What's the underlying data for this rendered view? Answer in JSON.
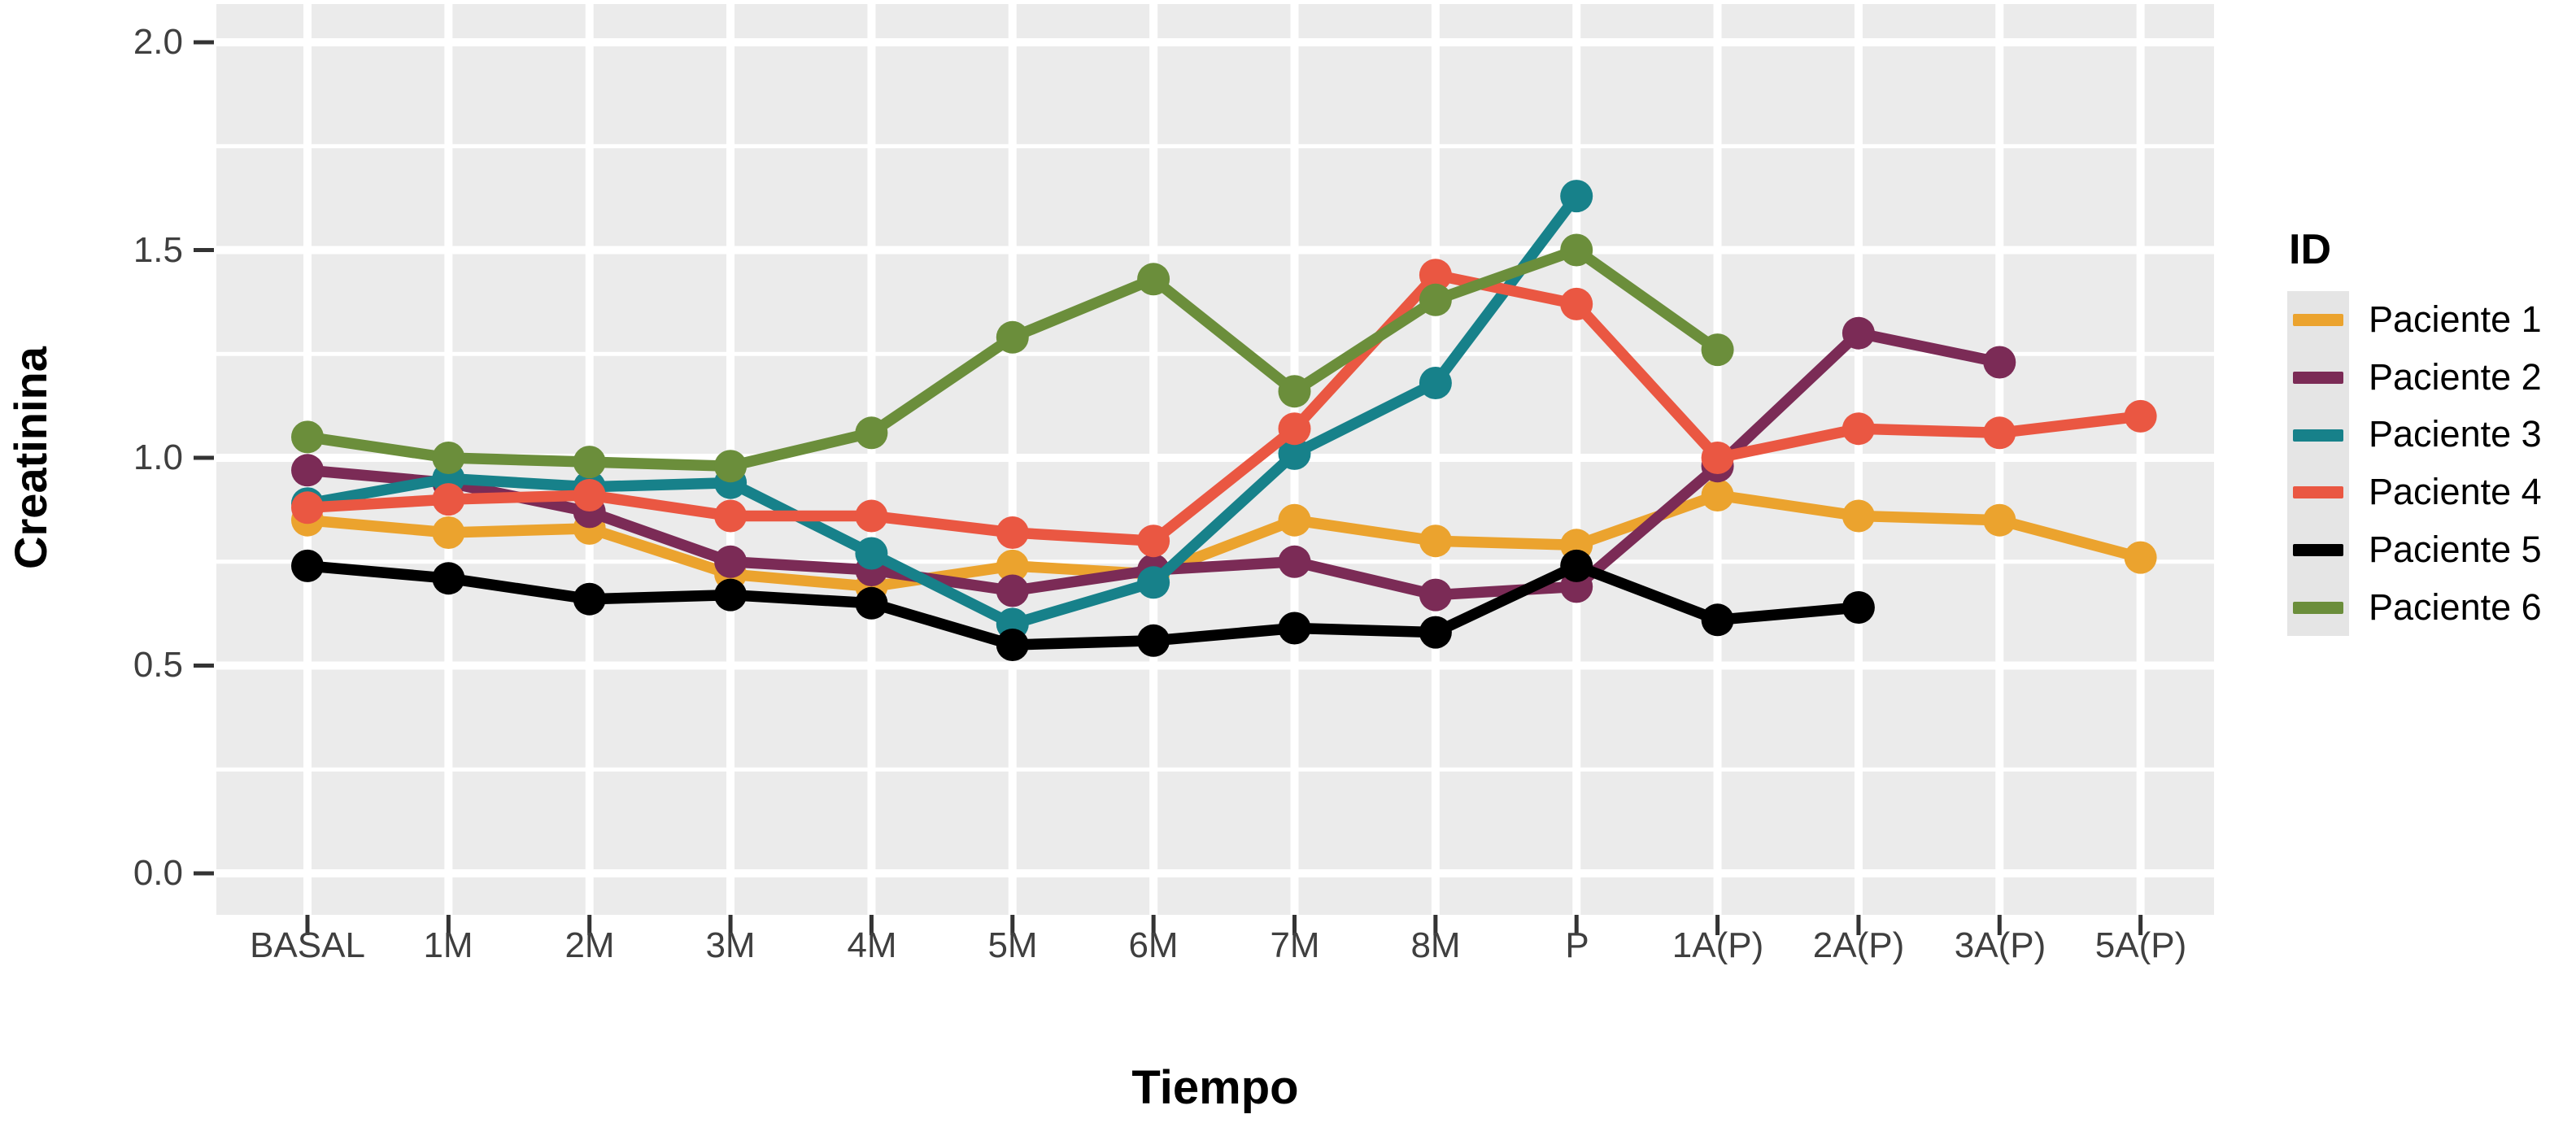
{
  "figure": {
    "panel_bg": "#ebebeb",
    "grid_color": "#ffffff",
    "axis_tick_color": "#333333",
    "tick_label_color": "#3f3f3f",
    "legend_key_bg": "#e5e5e5"
  },
  "chart_data": {
    "type": "line",
    "title": "",
    "xlabel": "Tiempo",
    "ylabel": "Creatinina",
    "legend_title": "ID",
    "legend_position": "right",
    "grid": true,
    "ylim": [
      -0.1,
      2.1
    ],
    "y_ticks": [
      0.0,
      0.5,
      1.0,
      1.5,
      2.0
    ],
    "y_tick_labels_top_down": [
      "2.0",
      "1.5",
      "1.0",
      "0.5",
      "0.0"
    ],
    "y_minor_ticks": [
      0.25,
      0.75,
      1.25,
      1.75
    ],
    "x_categories": [
      "BASAL",
      "1M",
      "2M",
      "3M",
      "4M",
      "5M",
      "6M",
      "7M",
      "8M",
      "P",
      "1A(P)",
      "2A(P)",
      "3A(P)",
      "5A(P)"
    ],
    "series": [
      {
        "name": "Paciente 1",
        "color": "#ebа32e",
        "values": [
          0.85,
          0.82,
          0.83,
          0.72,
          0.69,
          0.74,
          0.72,
          0.85,
          0.8,
          0.79,
          0.91,
          0.86,
          0.85,
          0.76
        ]
      },
      {
        "name": "Paciente 2",
        "color": "#7b2b56",
        "values": [
          0.97,
          0.94,
          0.87,
          0.75,
          0.73,
          0.68,
          0.73,
          0.75,
          0.67,
          0.69,
          0.98,
          1.3,
          1.23,
          null
        ]
      },
      {
        "name": "Paciente 3",
        "color": "#17818a",
        "values": [
          0.89,
          0.95,
          0.93,
          0.94,
          0.77,
          0.6,
          0.7,
          1.01,
          1.18,
          1.63,
          null,
          null,
          null,
          null
        ]
      },
      {
        "name": "Paciente 4",
        "color": "#ea5742",
        "values": [
          0.88,
          0.9,
          0.91,
          0.86,
          0.86,
          0.82,
          0.8,
          1.07,
          1.44,
          1.37,
          1.0,
          1.07,
          1.06,
          1.1
        ]
      },
      {
        "name": "Paciente 5",
        "color": "#000000",
        "values": [
          0.74,
          0.71,
          0.66,
          0.67,
          0.65,
          0.55,
          0.56,
          0.59,
          0.58,
          0.74,
          0.61,
          0.64,
          null,
          null
        ]
      },
      {
        "name": "Paciente 6",
        "color": "#6b8e3b",
        "values": [
          1.05,
          1.0,
          0.99,
          0.98,
          1.06,
          1.29,
          1.43,
          1.16,
          1.38,
          1.5,
          1.26,
          null,
          null,
          null
        ]
      }
    ]
  }
}
